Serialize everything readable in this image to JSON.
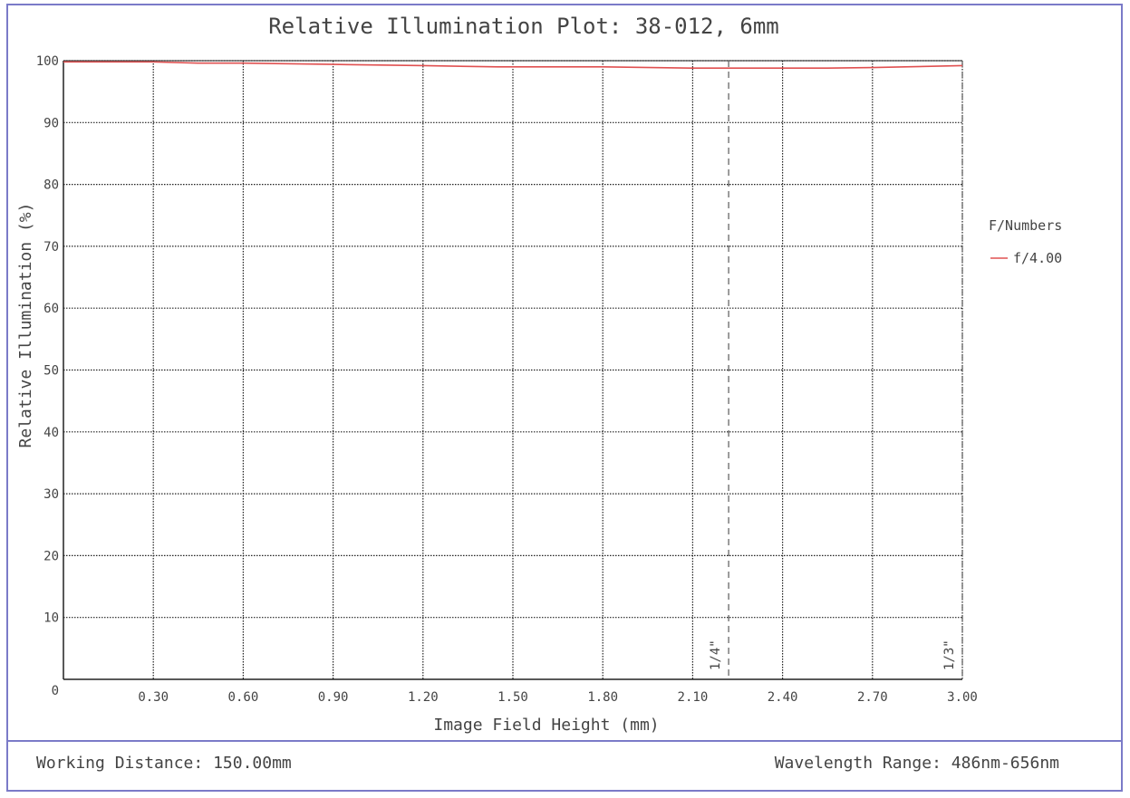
{
  "footer": {
    "working_distance": "Working Distance: 150.00mm",
    "wavelength_range": "Wavelength Range: 486nm-656nm"
  },
  "chart_data": {
    "type": "line",
    "title": "Relative Illumination Plot: 38-012, 6mm",
    "xlabel": "Image Field Height (mm)",
    "ylabel": "Relative Illumination (%)",
    "xlim": [
      0,
      3.0
    ],
    "ylim": [
      0,
      100
    ],
    "x_tick_labels": [
      "0.30",
      "0.60",
      "0.90",
      "1.20",
      "1.50",
      "1.80",
      "2.10",
      "2.40",
      "2.70",
      "3.00"
    ],
    "x_ticks": [
      0.3,
      0.6,
      0.9,
      1.2,
      1.5,
      1.8,
      2.1,
      2.4,
      2.7,
      3.0
    ],
    "y_tick_labels": [
      "0",
      "10",
      "20",
      "30",
      "40",
      "50",
      "60",
      "70",
      "80",
      "90",
      "100"
    ],
    "y_ticks": [
      0,
      10,
      20,
      30,
      40,
      50,
      60,
      70,
      80,
      90,
      100
    ],
    "grid": true,
    "legend_title": "F/Numbers",
    "legend_position": "right",
    "series": [
      {
        "name": "f/4.00",
        "color": "#e05050",
        "x": [
          0,
          0.3,
          0.45,
          0.6,
          0.9,
          1.2,
          1.45,
          1.8,
          2.1,
          2.4,
          2.55,
          2.7,
          3.0
        ],
        "y": [
          99.8,
          99.8,
          99.6,
          99.6,
          99.4,
          99.2,
          99.0,
          99.0,
          98.8,
          98.8,
          98.8,
          98.9,
          99.2
        ]
      }
    ],
    "markers": [
      {
        "label": "1/4\"",
        "x": 2.22,
        "style": "dashed"
      },
      {
        "label": "1/3\"",
        "x": 3.0,
        "style": "dashed"
      }
    ]
  }
}
